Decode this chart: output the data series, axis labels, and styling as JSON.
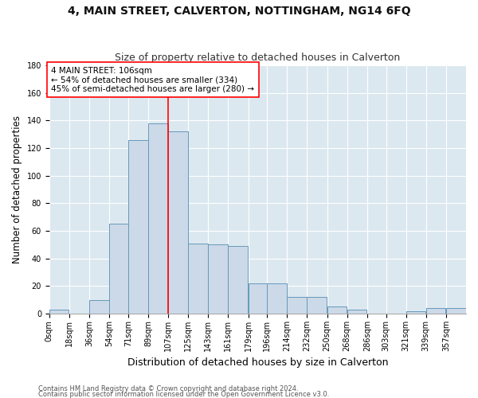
{
  "title": "4, MAIN STREET, CALVERTON, NOTTINGHAM, NG14 6FQ",
  "subtitle": "Size of property relative to detached houses in Calverton",
  "xlabel": "Distribution of detached houses by size in Calverton",
  "ylabel": "Number of detached properties",
  "footnote1": "Contains HM Land Registry data © Crown copyright and database right 2024.",
  "footnote2": "Contains public sector information licensed under the Open Government Licence v3.0.",
  "bin_labels": [
    "0sqm",
    "18sqm",
    "36sqm",
    "54sqm",
    "71sqm",
    "89sqm",
    "107sqm",
    "125sqm",
    "143sqm",
    "161sqm",
    "179sqm",
    "196sqm",
    "214sqm",
    "232sqm",
    "250sqm",
    "268sqm",
    "286sqm",
    "303sqm",
    "321sqm",
    "339sqm",
    "357sqm"
  ],
  "bar_heights": [
    3,
    0,
    10,
    65,
    126,
    138,
    132,
    51,
    50,
    49,
    22,
    22,
    12,
    12,
    5,
    3,
    0,
    0,
    2,
    4,
    4
  ],
  "bar_color": "#ccd9e8",
  "bar_edge_color": "#6699bb",
  "property_line_x": 107,
  "bin_width": 18,
  "property_label": "4 MAIN STREET: 106sqm",
  "annotation_line1": "← 54% of detached houses are smaller (334)",
  "annotation_line2": "45% of semi-detached houses are larger (280) →",
  "annotation_box_color": "white",
  "annotation_box_edge_color": "red",
  "vline_color": "red",
  "ylim": [
    0,
    180
  ],
  "yticks": [
    0,
    20,
    40,
    60,
    80,
    100,
    120,
    140,
    160,
    180
  ],
  "bg_color": "#ffffff",
  "plot_bg_color": "#dce8f0",
  "grid_color": "#ffffff",
  "title_fontsize": 10,
  "subtitle_fontsize": 9,
  "xlabel_fontsize": 9,
  "ylabel_fontsize": 8.5,
  "tick_fontsize": 7,
  "annotation_fontsize": 7.5,
  "footnote_fontsize": 6
}
